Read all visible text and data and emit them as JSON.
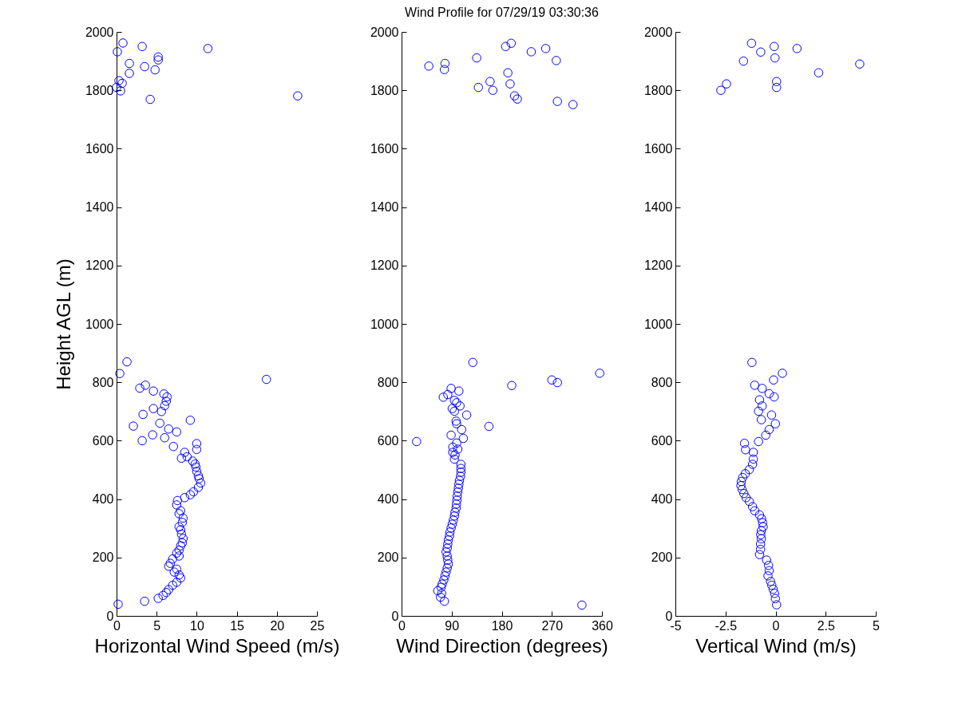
{
  "chart_data": [
    {
      "type": "scatter",
      "xlabel": "Horizontal Wind Speed (m/s)",
      "ylabel": "Height AGL (m)",
      "marker": "circle",
      "xlim": [
        0,
        25
      ],
      "xticks": [
        0,
        5,
        10,
        15,
        20,
        25
      ],
      "ylim": [
        0,
        2000
      ],
      "yticks": [
        0,
        200,
        400,
        600,
        800,
        1000,
        1200,
        1400,
        1600,
        1800,
        2000
      ],
      "series": [
        {
          "color": "#0000ff",
          "x": [
            0.2,
            3.5,
            5.2,
            5.8,
            6.2,
            6.5,
            7,
            7.5,
            8,
            7.8,
            7.2,
            7.5,
            6.5,
            6.7,
            7,
            7.8,
            7.5,
            7.8,
            8,
            8.2,
            8.3,
            8.1,
            8,
            7.8,
            8.2,
            8.3,
            7.8,
            8,
            7.5,
            7.6,
            8.5,
            9.2,
            9.6,
            10.2,
            10.5,
            10.3,
            10.2,
            10,
            9.9,
            9.8,
            9.5,
            8.8,
            8.1,
            8.5,
            7.1,
            10,
            10,
            6,
            3.2,
            4.5,
            6.5,
            7.5,
            2.1,
            9.2,
            5.4,
            3.3,
            4.6,
            5.6,
            6,
            6.2,
            6.3,
            5.9,
            4.6,
            2.9,
            3.6,
            1.3,
            0.4,
            18.7,
            0.8,
            0.1,
            3.2,
            11.4,
            5.2,
            5.2,
            1.6,
            1.6,
            3.5,
            4.8,
            4.2,
            22.6,
            0.3,
            0.7,
            0,
            0.5
          ],
          "values": [
            40,
            50,
            60,
            70,
            80,
            90,
            105,
            115,
            130,
            140,
            150,
            160,
            170,
            180,
            195,
            205,
            215,
            225,
            240,
            250,
            265,
            280,
            295,
            305,
            320,
            335,
            350,
            360,
            380,
            395,
            405,
            415,
            425,
            440,
            455,
            470,
            480,
            495,
            510,
            520,
            530,
            545,
            540,
            560,
            580,
            590,
            570,
            610,
            600,
            620,
            640,
            630,
            650,
            670,
            660,
            690,
            710,
            700,
            720,
            735,
            750,
            760,
            770,
            780,
            790,
            870,
            830,
            810,
            1962,
            1932,
            1950,
            1943,
            1914,
            1904,
            1892,
            1858,
            1881,
            1870,
            1769,
            1781,
            1833,
            1824,
            1810,
            1798
          ]
        }
      ]
    },
    {
      "type": "scatter",
      "title": "Wind Profile for  07/29/19 03:30:36",
      "xlabel": "Wind Direction (degrees)",
      "marker": "circle",
      "xlim": [
        0,
        360
      ],
      "xticks": [
        0,
        90,
        180,
        270,
        360
      ],
      "ylim": [
        0,
        2000
      ],
      "yticks": [
        0,
        200,
        400,
        600,
        800,
        1000,
        1200,
        1400,
        1600,
        1800,
        2000
      ],
      "series": [
        {
          "color": "#0000ff",
          "x": [
            49,
            78,
            77,
            135,
            187,
            197,
            233,
            259,
            278,
            191,
            159,
            195,
            138,
            164,
            203,
            208,
            280,
            308,
            128,
            356,
            270,
            280,
            198,
            157,
            27,
            324,
            89,
            103,
            75,
            83,
            95,
            99,
            105,
            91,
            95,
            117,
            98,
            99,
            108,
            89,
            111,
            99,
            92,
            101,
            92,
            96,
            95,
            106.6,
            106.6,
            106.6,
            106,
            104,
            103,
            102,
            101,
            100,
            99.4,
            98.5,
            98,
            96,
            95,
            93,
            91,
            89,
            87,
            86,
            84,
            83,
            82,
            80,
            82,
            83,
            84,
            82,
            80,
            78,
            76,
            73,
            71,
            65,
            72,
            70,
            77
          ],
          "values": [
            1883,
            1892,
            1871,
            1911,
            1950,
            1961,
            1932,
            1943,
            1902,
            1860,
            1830,
            1822,
            1810,
            1800,
            1781,
            1770,
            1762,
            1751,
            868,
            831,
            808,
            799,
            789,
            649,
            597,
            37,
            779,
            770,
            749,
            758,
            738,
            730,
            719,
            710,
            701,
            688,
            667,
            658,
            638,
            619,
            608,
            592,
            578,
            571,
            560,
            551,
            537,
            519,
            505,
            492,
            478,
            464,
            451,
            437,
            424,
            410,
            396,
            383,
            369,
            355,
            342,
            328,
            314,
            301,
            287,
            273,
            260,
            246,
            232,
            219,
            205,
            191,
            178,
            164,
            150,
            137,
            123,
            109,
            98,
            86,
            77,
            64,
            50
          ]
        }
      ]
    },
    {
      "type": "scatter",
      "xlabel": "Vertical Wind (m/s)",
      "marker": "circle",
      "xlim": [
        -5,
        5
      ],
      "xticks": [
        -5,
        -2.5,
        0,
        2.5,
        5
      ],
      "ylim": [
        0,
        2000
      ],
      "yticks": [
        0,
        200,
        400,
        600,
        800,
        1000,
        1200,
        1400,
        1600,
        1800,
        2000
      ],
      "series": [
        {
          "color": "#0000ff",
          "x": [
            -1.2,
            -0.07,
            -0.74,
            1.07,
            -1.6,
            -0.03,
            2.15,
            4.2,
            -2.45,
            -2.73,
            0.05,
            0.05,
            -1.18,
            0.34,
            -0.1,
            -1.04,
            -0.67,
            -0.32,
            -0.07,
            -0.8,
            -0.67,
            -0.85,
            -0.2,
            -0.71,
            -0.01,
            -0.32,
            -0.49,
            -0.85,
            -1.55,
            -1.5,
            -1.11,
            -1.11,
            -1.15,
            -1.31,
            -1.51,
            -1.64,
            -1.71,
            -1.73,
            -1.67,
            -1.58,
            -1.47,
            -1.31,
            -1.15,
            -1.04,
            -0.8,
            -0.7,
            -0.65,
            -0.62,
            -0.71,
            -0.74,
            -0.71,
            -0.75,
            -0.75,
            -0.8,
            -0.45,
            -0.35,
            -0.32,
            -0.38,
            -0.25,
            -0.19,
            -0.12,
            -0.05,
            -0.01,
            0.05
          ],
          "values": [
            1961,
            1950,
            1931,
            1943,
            1900,
            1911,
            1860,
            1890,
            1822,
            1800,
            1830,
            1810,
            868,
            831,
            808,
            790,
            779,
            761,
            750,
            740,
            719,
            701,
            688,
            672,
            658,
            638,
            619,
            597,
            591,
            569,
            560,
            537,
            519,
            501,
            487,
            474,
            460,
            446,
            433,
            419,
            405,
            392,
            374,
            360,
            346,
            333,
            319,
            305,
            292,
            278,
            264,
            246,
            228,
            210,
            191,
            173,
            155,
            137,
            118,
            105,
            91,
            77,
            59,
            38
          ]
        }
      ]
    }
  ]
}
